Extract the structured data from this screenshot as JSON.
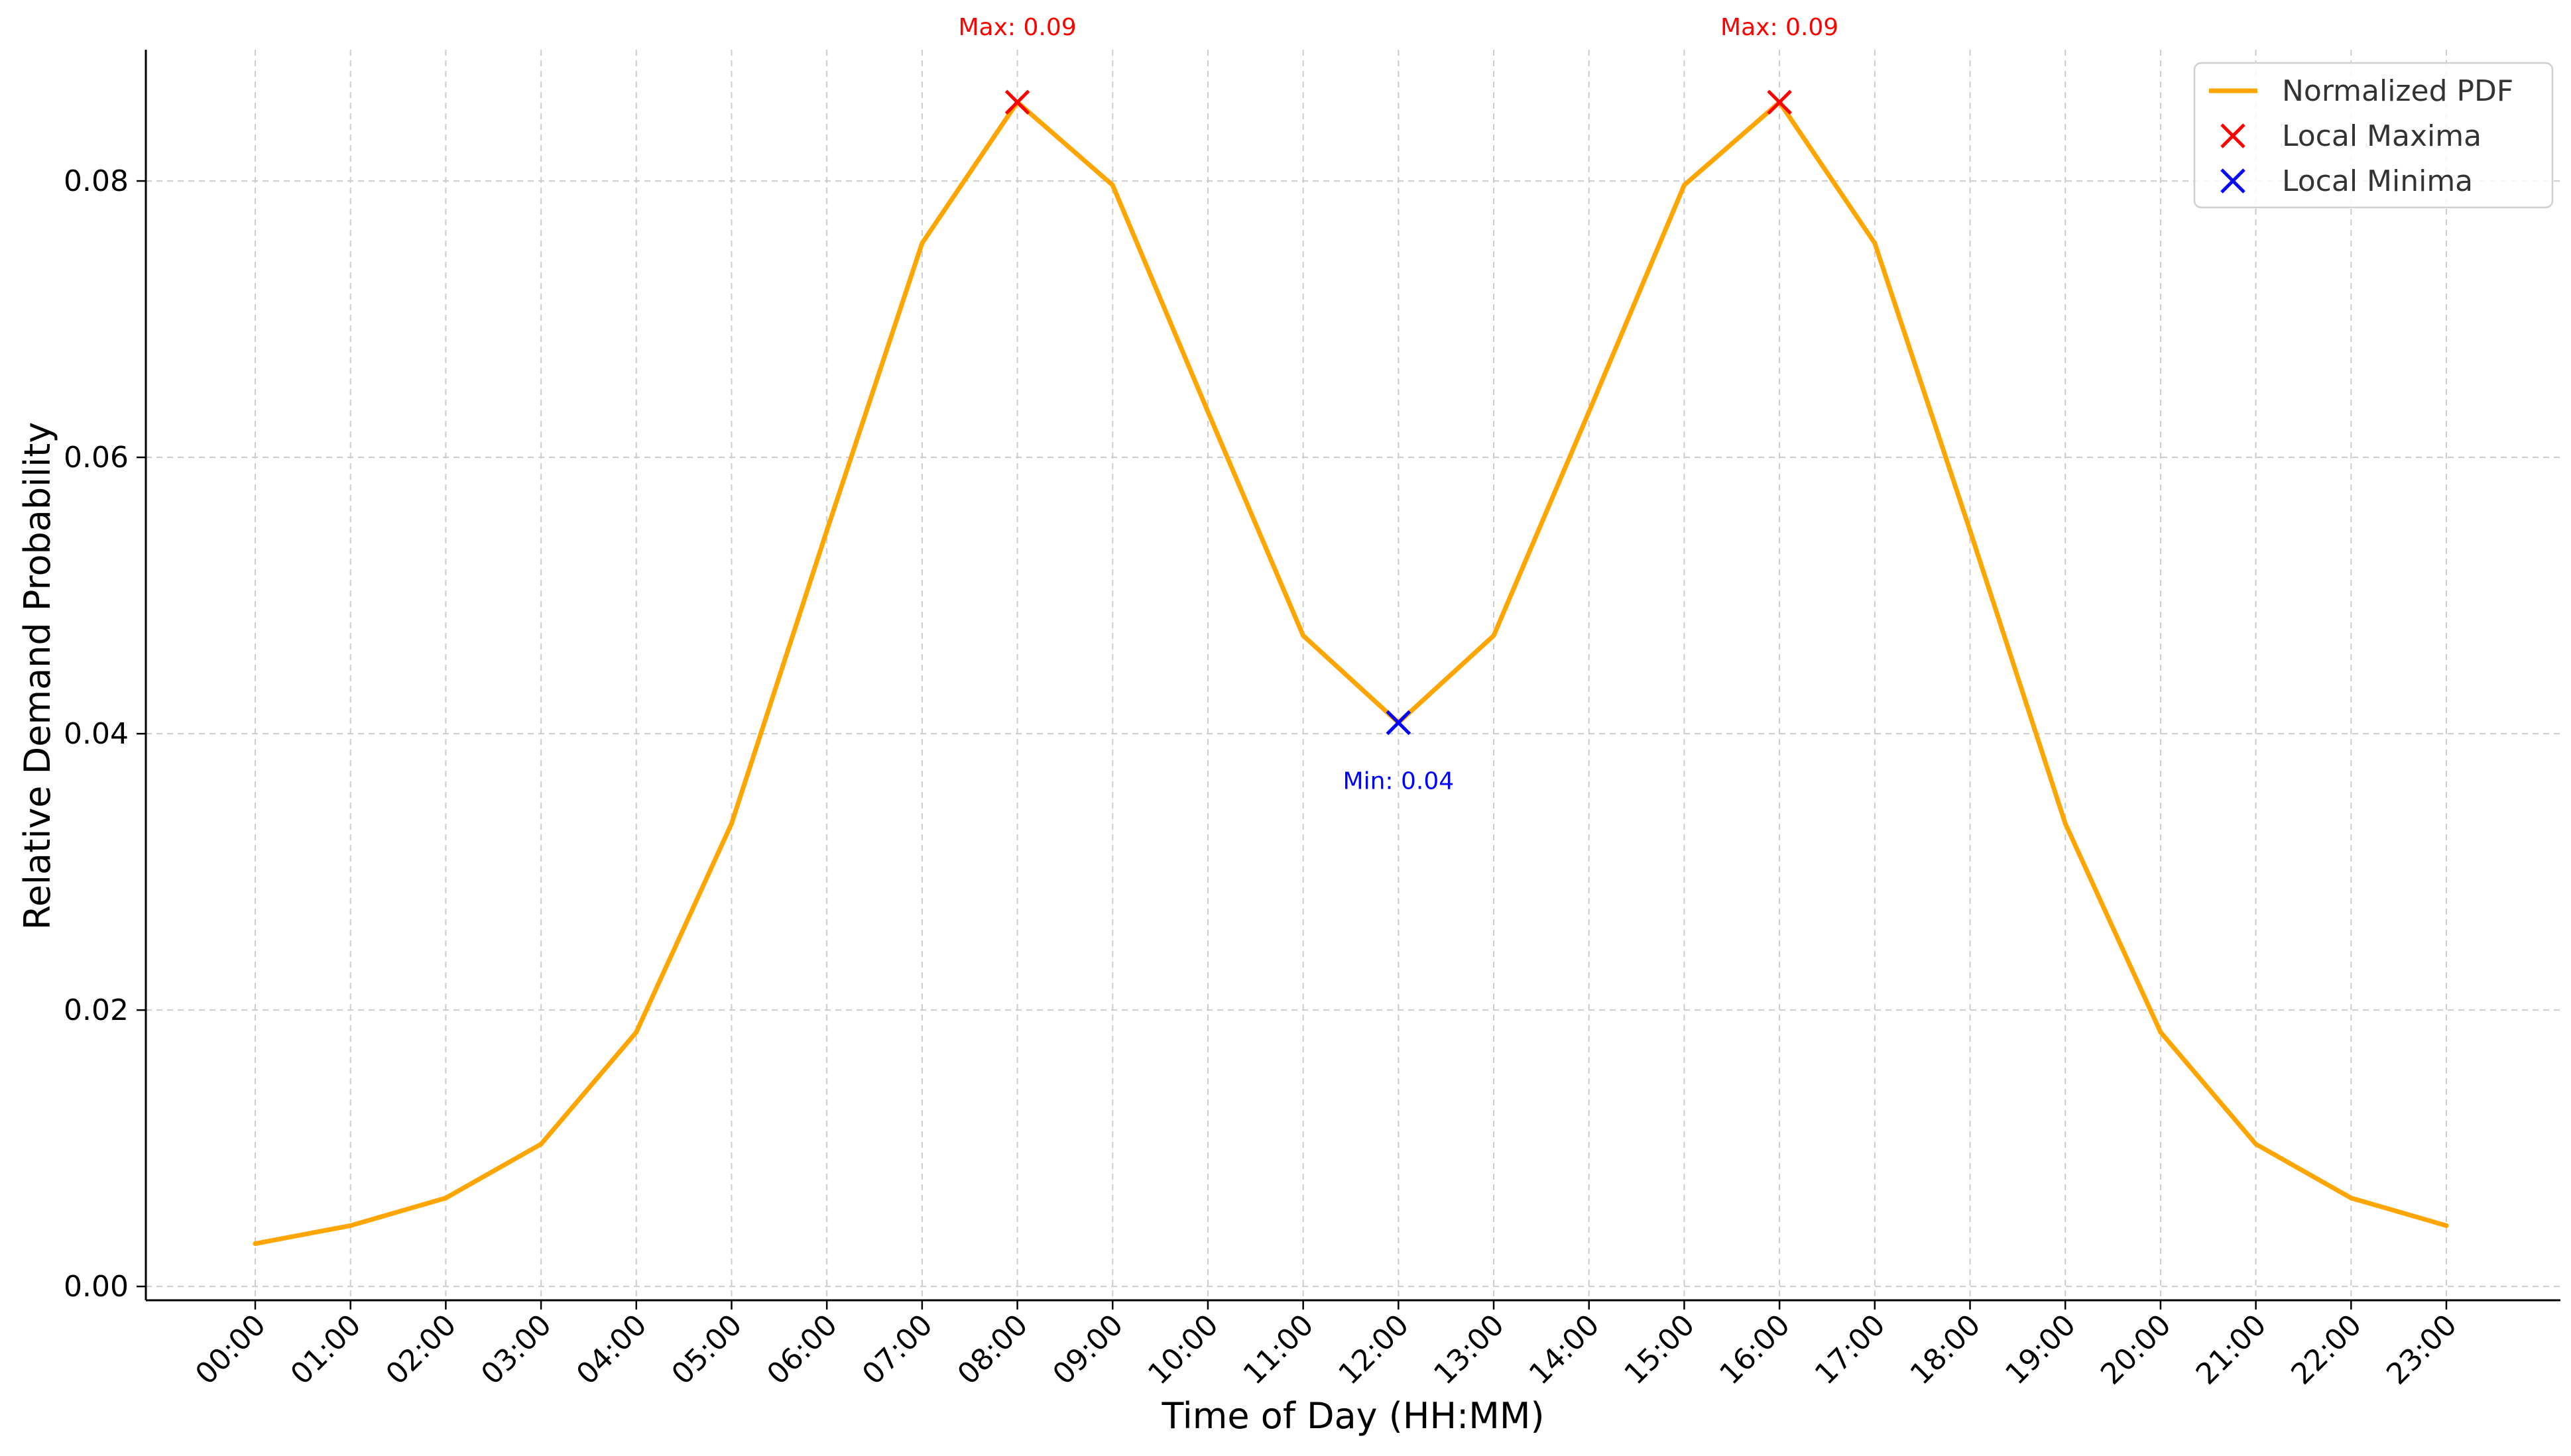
{
  "chart_data": {
    "type": "line",
    "title": "",
    "xlabel": "Time of Day (HH:MM)",
    "ylabel": "Relative Demand Probability",
    "ylim": [
      -0.001,
      0.0895
    ],
    "grid": true,
    "legend_position": "top-right",
    "categories": [
      "00:00",
      "01:00",
      "02:00",
      "03:00",
      "04:00",
      "05:00",
      "06:00",
      "07:00",
      "08:00",
      "09:00",
      "10:00",
      "11:00",
      "12:00",
      "13:00",
      "14:00",
      "15:00",
      "16:00",
      "17:00",
      "18:00",
      "19:00",
      "20:00",
      "21:00",
      "22:00",
      "23:00"
    ],
    "y_ticks": [
      {
        "value": 0.0,
        "label": "0.00"
      },
      {
        "value": 0.02,
        "label": "0.02"
      },
      {
        "value": 0.04,
        "label": "0.04"
      },
      {
        "value": 0.06,
        "label": "0.06"
      },
      {
        "value": 0.08,
        "label": "0.08"
      }
    ],
    "series": [
      {
        "name": "Normalized PDF",
        "color": "#FFA500",
        "values": [
          0.0031,
          0.0044,
          0.0064,
          0.0103,
          0.0184,
          0.0335,
          0.0547,
          0.0755,
          0.0857,
          0.0797,
          0.0633,
          0.0471,
          0.0408,
          0.0471,
          0.0633,
          0.0797,
          0.0857,
          0.0755,
          0.0547,
          0.0335,
          0.0184,
          0.0103,
          0.0064,
          0.0044
        ]
      }
    ],
    "markers": [
      {
        "name": "Local Maxima",
        "color": "#FF0000",
        "points": [
          {
            "x": "08:00",
            "y": 0.0857
          },
          {
            "x": "16:00",
            "y": 0.0857
          }
        ]
      },
      {
        "name": "Local Minima",
        "color": "#0000FF",
        "points": [
          {
            "x": "12:00",
            "y": 0.0408
          }
        ]
      }
    ],
    "annotations": [
      {
        "text": "Max: 0.09",
        "x": "08:00",
        "color": "#FF0000",
        "placement": "above-plot"
      },
      {
        "text": "Max: 0.09",
        "x": "16:00",
        "color": "#FF0000",
        "placement": "above-plot"
      },
      {
        "text": "Min: 0.04",
        "x": "12:00",
        "color": "#0000FF",
        "placement": "below-point"
      }
    ],
    "legend": [
      {
        "label": "Normalized PDF",
        "kind": "line",
        "color": "#FFA500"
      },
      {
        "label": "Local Maxima",
        "kind": "x-marker",
        "color": "#FF0000"
      },
      {
        "label": "Local Minima",
        "kind": "x-marker",
        "color": "#0000FF"
      }
    ]
  }
}
